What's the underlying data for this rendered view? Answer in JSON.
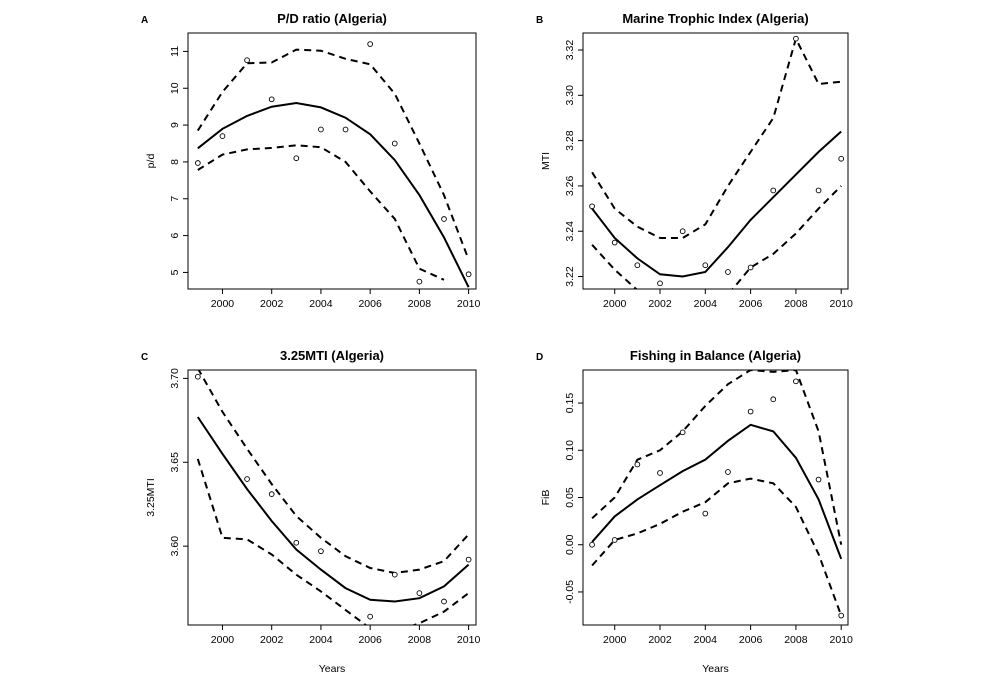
{
  "chart_data": [
    {
      "panel": "A",
      "type": "line",
      "title": "P/D ratio (Algeria)",
      "xlabel": "",
      "ylabel": "p/d",
      "xlim": [
        1998.6,
        2010.3
      ],
      "ylim": [
        4.55,
        11.5
      ],
      "xticks": [
        2000,
        2002,
        2004,
        2006,
        2008,
        2010
      ],
      "yticks": [
        5,
        6,
        7,
        8,
        9,
        10,
        11
      ],
      "points": {
        "x": [
          1999,
          2000,
          2001,
          2002,
          2003,
          2004,
          2005,
          2006,
          2007,
          2008,
          2009,
          2010
        ],
        "y": [
          7.97,
          8.7,
          10.76,
          9.7,
          8.1,
          8.88,
          8.88,
          11.2,
          8.5,
          4.75,
          6.45,
          4.95
        ]
      },
      "fit": {
        "x": [
          1999,
          2000,
          2001,
          2002,
          2003,
          2004,
          2005,
          2006,
          2007,
          2008,
          2009,
          2010
        ],
        "y": [
          8.37,
          8.9,
          9.25,
          9.5,
          9.6,
          9.48,
          9.2,
          8.75,
          8.05,
          7.1,
          5.95,
          4.6
        ]
      },
      "upper": {
        "x": [
          1999,
          2000,
          2001,
          2002,
          2003,
          2004,
          2005,
          2006,
          2007,
          2008,
          2009,
          2010
        ],
        "y": [
          8.85,
          9.9,
          10.68,
          10.7,
          11.05,
          11.02,
          10.8,
          10.65,
          9.85,
          8.5,
          7.1,
          5.35
        ]
      },
      "lower": {
        "x": [
          1999,
          2000,
          2001,
          2002,
          2003,
          2004,
          2005,
          2006,
          2007,
          2008,
          2009
        ],
        "y": [
          7.78,
          8.2,
          8.34,
          8.38,
          8.45,
          8.4,
          8.0,
          7.2,
          6.45,
          5.1,
          4.8
        ]
      }
    },
    {
      "panel": "B",
      "type": "line",
      "title": "Marine Trophic Index (Algeria)",
      "xlabel": "",
      "ylabel": "MTI",
      "xlim": [
        1998.6,
        2010.3
      ],
      "ylim": [
        3.2145,
        3.3275
      ],
      "xticks": [
        2000,
        2002,
        2004,
        2006,
        2008,
        2010
      ],
      "yticks": [
        3.22,
        3.24,
        3.26,
        3.28,
        3.3,
        3.32
      ],
      "points": {
        "x": [
          1999,
          2000,
          2001,
          2002,
          2003,
          2004,
          2005,
          2006,
          2007,
          2008,
          2009,
          2010
        ],
        "y": [
          3.251,
          3.235,
          3.225,
          3.217,
          3.24,
          3.225,
          3.222,
          3.224,
          3.258,
          3.325,
          3.258,
          3.272
        ]
      },
      "fit": {
        "x": [
          1999,
          2000,
          2001,
          2002,
          2003,
          2004,
          2005,
          2006,
          2007,
          2008,
          2009,
          2010
        ],
        "y": [
          3.25,
          3.237,
          3.228,
          3.221,
          3.22,
          3.222,
          3.233,
          3.245,
          3.255,
          3.265,
          3.275,
          3.284
        ]
      },
      "upper": {
        "x": [
          1999,
          2000,
          2001,
          2002,
          2003,
          2004,
          2005,
          2006,
          2007,
          2008,
          2009,
          2010
        ],
        "y": [
          3.266,
          3.25,
          3.242,
          3.237,
          3.237,
          3.243,
          3.26,
          3.275,
          3.29,
          3.325,
          3.305,
          3.306
        ]
      },
      "lower": {
        "x": [
          1999,
          2000,
          2001,
          2005,
          2006,
          2007,
          2008,
          2009,
          2010
        ],
        "y": [
          3.234,
          3.223,
          3.214,
          3.212,
          3.224,
          3.23,
          3.239,
          3.25,
          3.26
        ]
      }
    },
    {
      "panel": "C",
      "type": "line",
      "title": "3.25MTI (Algeria)",
      "xlabel": "Years",
      "ylabel": "3.25MTI",
      "xlim": [
        1998.6,
        2010.3
      ],
      "ylim": [
        3.553,
        3.705
      ],
      "xticks": [
        2000,
        2002,
        2004,
        2006,
        2008,
        2010
      ],
      "yticks": [
        3.6,
        3.65,
        3.7
      ],
      "points": {
        "x": [
          1999,
          2001,
          2002,
          2003,
          2004,
          2006,
          2007,
          2008,
          2009,
          2010
        ],
        "y": [
          3.701,
          3.64,
          3.631,
          3.602,
          3.597,
          3.558,
          3.583,
          3.572,
          3.567,
          3.592
        ]
      },
      "fit": {
        "x": [
          1999,
          2000,
          2001,
          2002,
          2003,
          2004,
          2005,
          2006,
          2007,
          2008,
          2009,
          2010
        ],
        "y": [
          3.677,
          3.655,
          3.634,
          3.615,
          3.598,
          3.586,
          3.575,
          3.568,
          3.567,
          3.569,
          3.576,
          3.589
        ]
      },
      "upper": {
        "x": [
          1999,
          2000,
          2001,
          2002,
          2003,
          2004,
          2005,
          2006,
          2007,
          2008,
          2009,
          2010
        ],
        "y": [
          3.706,
          3.68,
          3.658,
          3.637,
          3.618,
          3.605,
          3.594,
          3.587,
          3.584,
          3.586,
          3.591,
          3.607
        ]
      },
      "lower": {
        "x": [
          1999,
          2000,
          2001,
          2002,
          2003,
          2004,
          2005,
          2006,
          2007,
          2008,
          2009,
          2010
        ],
        "y": [
          3.652,
          3.605,
          3.604,
          3.595,
          3.583,
          3.573,
          3.562,
          3.551,
          3.549,
          3.554,
          3.561,
          3.572
        ]
      }
    },
    {
      "panel": "D",
      "type": "line",
      "title": "Fishing in Balance (Algeria)",
      "xlabel": "Years",
      "ylabel": "FiB",
      "xlim": [
        1998.6,
        2010.3
      ],
      "ylim": [
        -0.085,
        0.185
      ],
      "xticks": [
        2000,
        2002,
        2004,
        2006,
        2008,
        2010
      ],
      "yticks": [
        -0.05,
        0.0,
        0.05,
        0.1,
        0.15
      ],
      "points": {
        "x": [
          1999,
          2000,
          2001,
          2002,
          2003,
          2004,
          2005,
          2006,
          2007,
          2008,
          2009,
          2010
        ],
        "y": [
          0.0,
          0.005,
          0.085,
          0.076,
          0.119,
          0.033,
          0.077,
          0.141,
          0.154,
          0.173,
          0.069,
          -0.075
        ]
      },
      "fit": {
        "x": [
          1999,
          2000,
          2001,
          2002,
          2003,
          2004,
          2005,
          2006,
          2007,
          2008,
          2009,
          2010
        ],
        "y": [
          0.003,
          0.03,
          0.048,
          0.063,
          0.078,
          0.09,
          0.11,
          0.127,
          0.12,
          0.092,
          0.048,
          -0.015
        ]
      },
      "upper": {
        "x": [
          1999,
          2000,
          2001,
          2002,
          2003,
          2004,
          2005,
          2006,
          2007,
          2008,
          2009,
          2010
        ],
        "y": [
          0.028,
          0.05,
          0.09,
          0.1,
          0.12,
          0.147,
          0.17,
          0.185,
          0.183,
          0.185,
          0.12,
          0.0
        ]
      },
      "lower": {
        "x": [
          1999,
          2000,
          2001,
          2002,
          2003,
          2004,
          2005,
          2006,
          2007,
          2008,
          2009,
          2010
        ],
        "y": [
          -0.022,
          0.005,
          0.012,
          0.022,
          0.035,
          0.045,
          0.065,
          0.07,
          0.065,
          0.04,
          -0.01,
          -0.075
        ]
      }
    }
  ]
}
